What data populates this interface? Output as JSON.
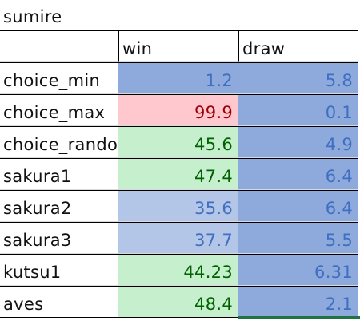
{
  "sheet": {
    "title_cell": "sumire",
    "headers": [
      "win",
      "draw"
    ],
    "rows": [
      {
        "name": "choice_min",
        "win": "1.2",
        "draw": "5.8"
      },
      {
        "name": "choice_max",
        "win": "99.9",
        "draw": "0.1"
      },
      {
        "name": "choice_random",
        "win": "45.6",
        "draw": "4.9"
      },
      {
        "name": "sakura1",
        "win": "47.4",
        "draw": "6.4"
      },
      {
        "name": "sakura2",
        "win": "35.6",
        "draw": "6.4"
      },
      {
        "name": "sakura3",
        "win": "37.7",
        "draw": "5.5"
      },
      {
        "name": "kutsu1",
        "win": "44.23",
        "draw": "6.31"
      },
      {
        "name": "aves",
        "win": "48.4",
        "draw": "2.1"
      }
    ]
  },
  "colors": {
    "blue_dark_fill": "#8ea9db",
    "blue_light_fill": "#b4c6e7",
    "pink_fill": "#ffc7ce",
    "green_fill": "#c6efce",
    "selection": "#217346"
  }
}
